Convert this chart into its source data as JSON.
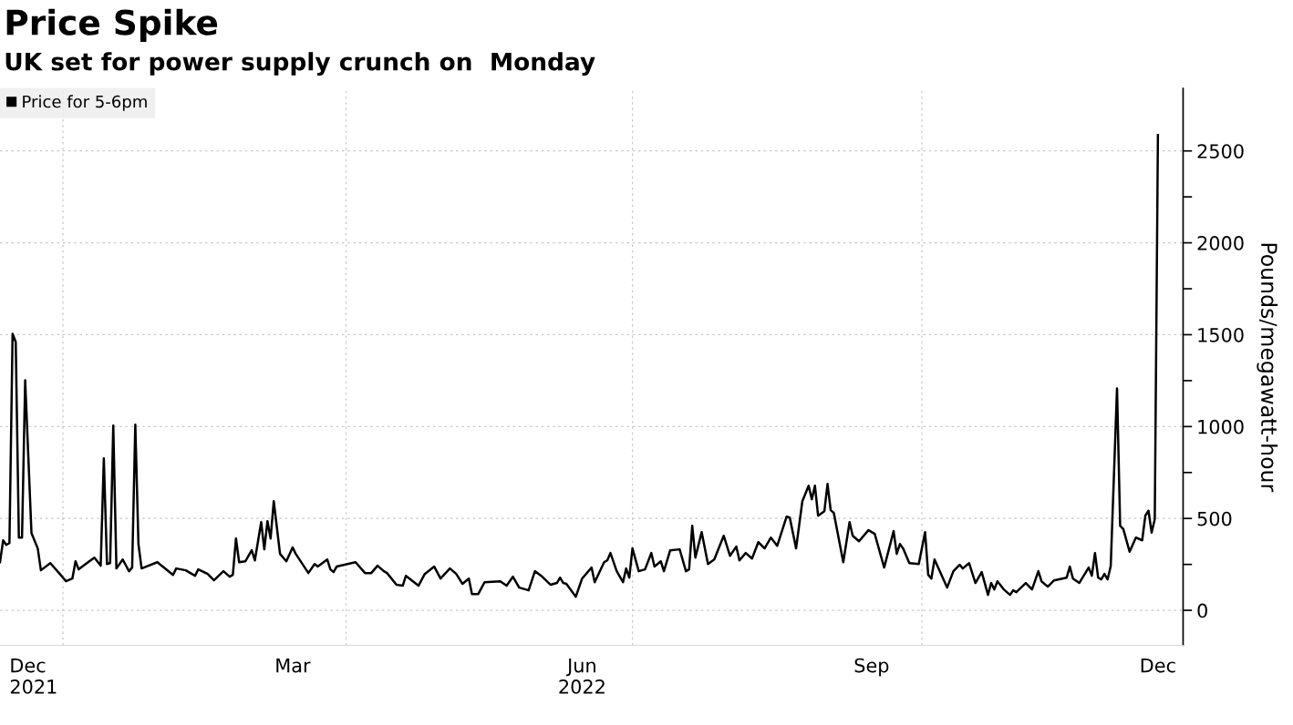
{
  "chart_data": {
    "type": "line",
    "title": "Price Spike",
    "subtitle": "UK set for power supply crunch on  Monday",
    "ylabel": "Pounds/megawatt-hour",
    "xlim": [
      "2021-12-12",
      "2022-12-23"
    ],
    "ylim": [
      -190,
      2840
    ],
    "xticks": [
      {
        "value": "2021-12-15",
        "label": "Dec\n2021"
      },
      {
        "value": "2022-01-01",
        "label": null
      },
      {
        "value": "2022-03-15",
        "label": "Mar"
      },
      {
        "value": "2022-04-01",
        "label": null
      },
      {
        "value": "2022-06-15",
        "label": "Jun\n2022"
      },
      {
        "value": "2022-07-01",
        "label": null
      },
      {
        "value": "2022-09-15",
        "label": "Sep"
      },
      {
        "value": "2022-10-01",
        "label": null
      },
      {
        "value": "2022-12-15",
        "label": "Dec"
      }
    ],
    "yticks": [
      0,
      {
        "value": 250,
        "label": null
      },
      500,
      {
        "value": 750,
        "label": null
      },
      1000,
      {
        "value": 1250,
        "label": null
      },
      1500,
      {
        "value": 1750,
        "label": null
      },
      2000,
      {
        "value": 2250,
        "label": null
      },
      2500
    ],
    "grid": true,
    "legend": "top left",
    "marker": "none",
    "line_style": "solid",
    "series": [
      {
        "name": "Price for 5-6pm",
        "color": "#000000",
        "x": [
          "2021-12-12",
          "2021-12-13",
          "2021-12-14",
          "2021-12-15",
          "2021-12-16",
          "2021-12-17",
          "2021-12-18",
          "2021-12-19",
          "2021-12-20",
          "2021-12-22",
          "2021-12-24",
          "2021-12-25",
          "2021-12-28",
          "2021-12-31",
          "2022-01-02",
          "2022-01-04",
          "2022-01-05",
          "2022-01-06",
          "2022-01-09",
          "2022-01-11",
          "2022-01-13",
          "2022-01-14",
          "2022-01-15",
          "2022-01-16",
          "2022-01-17",
          "2022-01-18",
          "2022-01-20",
          "2022-01-22",
          "2022-01-23",
          "2022-01-24",
          "2022-01-25",
          "2022-01-26",
          "2022-01-31",
          "2022-02-05",
          "2022-02-06",
          "2022-02-09",
          "2022-02-12",
          "2022-02-13",
          "2022-02-16",
          "2022-02-18",
          "2022-02-21",
          "2022-02-23",
          "2022-02-24",
          "2022-02-25",
          "2022-02-26",
          "2022-02-28",
          "2022-03-02",
          "2022-03-03",
          "2022-03-05",
          "2022-03-06",
          "2022-03-07",
          "2022-03-08",
          "2022-03-09",
          "2022-03-11",
          "2022-03-13",
          "2022-03-15",
          "2022-03-16",
          "2022-03-20",
          "2022-03-22",
          "2022-03-23",
          "2022-03-26",
          "2022-03-27",
          "2022-03-28",
          "2022-03-29",
          "2022-04-04",
          "2022-04-07",
          "2022-04-09",
          "2022-04-11",
          "2022-04-13",
          "2022-04-14",
          "2022-04-17",
          "2022-04-19",
          "2022-04-20",
          "2022-04-24",
          "2022-04-26",
          "2022-04-29",
          "2022-05-01",
          "2022-05-04",
          "2022-05-06",
          "2022-05-08",
          "2022-05-10",
          "2022-05-11",
          "2022-05-13",
          "2022-05-15",
          "2022-05-20",
          "2022-05-22",
          "2022-05-24",
          "2022-05-26",
          "2022-05-29",
          "2022-05-31",
          "2022-06-02",
          "2022-06-05",
          "2022-06-07",
          "2022-06-08",
          "2022-06-09",
          "2022-06-10",
          "2022-06-13",
          "2022-06-15",
          "2022-06-18",
          "2022-06-19",
          "2022-06-22",
          "2022-06-23",
          "2022-06-24",
          "2022-06-26",
          "2022-06-28",
          "2022-06-29",
          "2022-06-30",
          "2022-07-01",
          "2022-07-03",
          "2022-07-05",
          "2022-07-07",
          "2022-07-08",
          "2022-07-10",
          "2022-07-11",
          "2022-07-13",
          "2022-07-16",
          "2022-07-18",
          "2022-07-19",
          "2022-07-20",
          "2022-07-21",
          "2022-07-23",
          "2022-07-25",
          "2022-07-27",
          "2022-07-30",
          "2022-08-01",
          "2022-08-03",
          "2022-08-04",
          "2022-08-06",
          "2022-08-08",
          "2022-08-10",
          "2022-08-12",
          "2022-08-14",
          "2022-08-16",
          "2022-08-19",
          "2022-08-20",
          "2022-08-22",
          "2022-08-24",
          "2022-08-26",
          "2022-08-27",
          "2022-08-28",
          "2022-08-29",
          "2022-08-31",
          "2022-09-01",
          "2022-09-02",
          "2022-09-03",
          "2022-09-06",
          "2022-09-08",
          "2022-09-09",
          "2022-09-11",
          "2022-09-14",
          "2022-09-16",
          "2022-09-19",
          "2022-09-22",
          "2022-09-23",
          "2022-09-24",
          "2022-09-25",
          "2022-09-27",
          "2022-09-30",
          "2022-10-02",
          "2022-10-03",
          "2022-10-04",
          "2022-10-05",
          "2022-10-09",
          "2022-10-11",
          "2022-10-13",
          "2022-10-14",
          "2022-10-16",
          "2022-10-18",
          "2022-10-20",
          "2022-10-22",
          "2022-10-23",
          "2022-10-24",
          "2022-10-25",
          "2022-10-27",
          "2022-10-29",
          "2022-10-30",
          "2022-10-31",
          "2022-11-03",
          "2022-11-05",
          "2022-11-07",
          "2022-11-08",
          "2022-11-10",
          "2022-11-12",
          "2022-11-16",
          "2022-11-17",
          "2022-11-18",
          "2022-11-20",
          "2022-11-23",
          "2022-11-24",
          "2022-11-25",
          "2022-11-26",
          "2022-11-27",
          "2022-11-28",
          "2022-11-29",
          "2022-11-30",
          "2022-12-02",
          "2022-12-03",
          "2022-12-04",
          "2022-12-06",
          "2022-12-08",
          "2022-12-10",
          "2022-12-11",
          "2022-12-12",
          "2022-12-13",
          "2022-12-14",
          "2022-12-15"
        ],
        "values": [
          262,
          381,
          356,
          366,
          1505,
          1460,
          396,
          396,
          1252,
          421,
          337,
          218,
          257,
          198,
          158,
          173,
          267,
          223,
          262,
          287,
          243,
          827,
          252,
          257,
          1005,
          228,
          277,
          213,
          233,
          1010,
          361,
          228,
          262,
          193,
          228,
          218,
          188,
          223,
          198,
          163,
          213,
          183,
          193,
          391,
          262,
          267,
          327,
          272,
          480,
          332,
          485,
          391,
          594,
          307,
          267,
          342,
          307,
          203,
          252,
          238,
          277,
          223,
          208,
          238,
          262,
          203,
          203,
          243,
          213,
          203,
          139,
          134,
          188,
          134,
          198,
          238,
          173,
          228,
          198,
          144,
          173,
          89,
          89,
          153,
          158,
          134,
          183,
          124,
          109,
          213,
          188,
          139,
          149,
          178,
          149,
          144,
          74,
          173,
          233,
          153,
          262,
          272,
          312,
          213,
          153,
          228,
          178,
          337,
          213,
          223,
          312,
          238,
          267,
          213,
          327,
          332,
          213,
          223,
          460,
          287,
          426,
          252,
          277,
          406,
          297,
          347,
          272,
          312,
          282,
          371,
          337,
          396,
          351,
          510,
          505,
          337,
          594,
          678,
          604,
          678,
          515,
          540,
          688,
          545,
          530,
          262,
          480,
          406,
          376,
          436,
          416,
          233,
          431,
          307,
          361,
          337,
          257,
          252,
          426,
          193,
          173,
          277,
          124,
          213,
          248,
          228,
          257,
          149,
          208,
          84,
          149,
          114,
          158,
          114,
          84,
          109,
          99,
          149,
          114,
          213,
          158,
          129,
          163,
          178,
          238,
          173,
          149,
          233,
          188,
          312,
          178,
          168,
          198,
          168,
          241,
          1208,
          460,
          442,
          319,
          396,
          381,
          515,
          542,
          423,
          496,
          2586
        ]
      }
    ]
  }
}
